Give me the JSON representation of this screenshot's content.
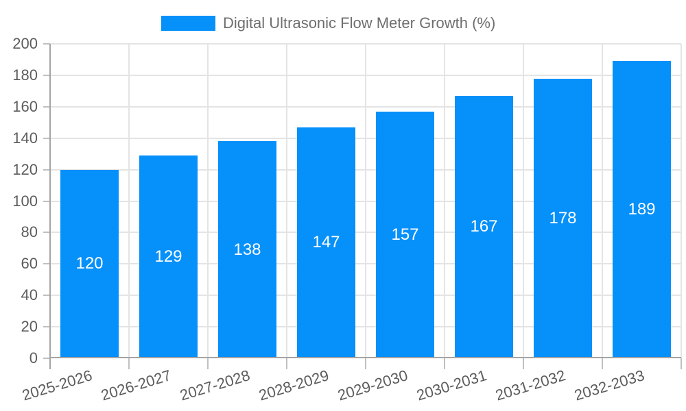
{
  "chart_data": {
    "type": "bar",
    "title": "Digital Ultrasonic Flow Meter Growth (%)",
    "legend_position": "top",
    "categories": [
      "2025-2026",
      "2026-2027",
      "2027-2028",
      "2028-2029",
      "2029-2030",
      "2030-2031",
      "2031-2032",
      "2032-2033"
    ],
    "series": [
      {
        "name": "Digital Ultrasonic Flow Meter Growth (%)",
        "values": [
          120,
          129,
          138,
          147,
          157,
          167,
          178,
          189
        ]
      }
    ],
    "xlabel": "",
    "ylabel": "",
    "ylim": [
      0,
      200
    ],
    "ytick_step": 20,
    "yticks": [
      0,
      20,
      40,
      60,
      80,
      100,
      120,
      140,
      160,
      180,
      200
    ],
    "grid": true,
    "data_labels": "inside-center",
    "x_label_rotation_deg": -17,
    "colors": {
      "bar": "#0690FA",
      "grid": "#e4e4e4",
      "axis": "#a4a4a4",
      "tick": "#c0c0c0",
      "axis_label": "#5c5c5c",
      "legend_text": "#6e6e6e",
      "bar_label": "#ffffff",
      "background": "#ffffff"
    }
  }
}
